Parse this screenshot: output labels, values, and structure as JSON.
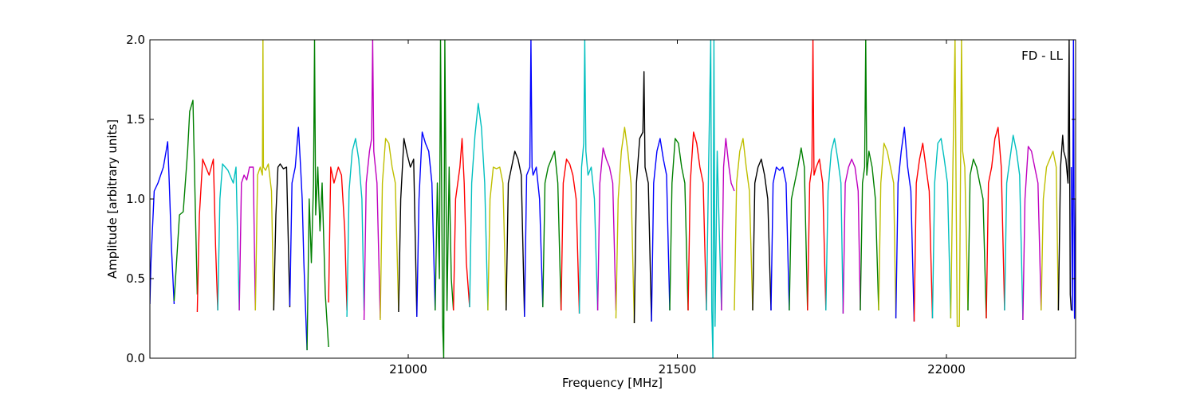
{
  "chart_data": {
    "type": "line",
    "title": "",
    "xlabel": "Frequency [MHz]",
    "ylabel": "Amplitude [arbitrary units]",
    "annotation": "FD - LL",
    "xlim": [
      20520,
      22240
    ],
    "ylim": [
      0,
      2
    ],
    "x_ticks": [
      21000,
      21500,
      22000
    ],
    "y_ticks": [
      0.0,
      0.5,
      1.0,
      1.5,
      2.0
    ],
    "x_tick_labels": [
      "21000",
      "21500",
      "22000"
    ],
    "y_tick_labels": [
      "0.0",
      "0.5",
      "1.0",
      "1.5",
      "2.0"
    ],
    "grid": false,
    "legend": "none",
    "series": [
      {
        "color": "#0000ff",
        "x": [
          20520,
          20522,
          20528,
          20535,
          20545,
          20550,
          20553,
          20556,
          20560,
          20565
        ],
        "y": [
          0.34,
          0.6,
          1.05,
          1.1,
          1.2,
          1.3,
          1.36,
          1.1,
          0.7,
          0.34
        ]
      },
      {
        "color": "#008000",
        "x": [
          20565,
          20575,
          20582,
          20590,
          20594,
          20600,
          20604,
          20608
        ],
        "y": [
          0.36,
          0.9,
          0.92,
          1.3,
          1.55,
          1.62,
          1.0,
          0.4
        ]
      },
      {
        "color": "#ff0000",
        "x": [
          20608,
          20612,
          20618,
          20624,
          20630,
          20638,
          20642,
          20646
        ],
        "y": [
          0.29,
          0.9,
          1.25,
          1.2,
          1.15,
          1.25,
          0.7,
          0.3
        ]
      },
      {
        "color": "#00bfbf",
        "x": [
          20646,
          20650,
          20655,
          20665,
          20675,
          20680,
          20686
        ],
        "y": [
          0.3,
          1.0,
          1.22,
          1.18,
          1.1,
          1.2,
          0.3
        ]
      },
      {
        "color": "#bf00bf",
        "x": [
          20686,
          20690,
          20695,
          20700,
          20705,
          20712,
          20716
        ],
        "y": [
          0.3,
          1.1,
          1.15,
          1.12,
          1.2,
          1.2,
          0.3
        ]
      },
      {
        "color": "#bfbf00",
        "x": [
          20716,
          20720,
          20725,
          20729,
          20730,
          20731,
          20735,
          20740,
          20746,
          20750
        ],
        "y": [
          0.3,
          1.15,
          1.2,
          1.15,
          2.0,
          1.2,
          1.18,
          1.22,
          1.05,
          0.3
        ]
      },
      {
        "color": "#000000",
        "x": [
          20750,
          20754,
          20758,
          20762,
          20768,
          20774,
          20780
        ],
        "y": [
          0.3,
          0.9,
          1.2,
          1.22,
          1.19,
          1.2,
          0.32
        ]
      },
      {
        "color": "#0000ff",
        "x": [
          20780,
          20784,
          20790,
          20796,
          20800,
          20803,
          20806,
          20812
        ],
        "y": [
          0.33,
          1.1,
          1.2,
          1.45,
          1.2,
          1.0,
          0.6,
          0.05
        ]
      },
      {
        "color": "#008000",
        "x": [
          20812,
          20816,
          20820,
          20824,
          20826,
          20828,
          20832,
          20836,
          20840,
          20846,
          20852
        ],
        "y": [
          0.05,
          1.0,
          0.6,
          1.1,
          2.0,
          0.9,
          1.2,
          0.8,
          1.1,
          0.4,
          0.07
        ]
      },
      {
        "color": "#ff0000",
        "x": [
          20852,
          20856,
          20862,
          20870,
          20876,
          20882,
          20886
        ],
        "y": [
          0.35,
          1.2,
          1.1,
          1.2,
          1.15,
          0.8,
          0.3
        ]
      },
      {
        "color": "#00bfbf",
        "x": [
          20886,
          20890,
          20896,
          20902,
          20908,
          20914,
          20918
        ],
        "y": [
          0.26,
          1.05,
          1.3,
          1.38,
          1.25,
          1.0,
          0.3
        ]
      },
      {
        "color": "#bf00bf",
        "x": [
          20918,
          20922,
          20928,
          20932,
          20934,
          20936,
          20942,
          20948
        ],
        "y": [
          0.24,
          1.1,
          1.3,
          1.38,
          2.0,
          1.3,
          1.1,
          0.25
        ]
      },
      {
        "color": "#bfbf00",
        "x": [
          20948,
          20952,
          20958,
          20964,
          20970,
          20976,
          20982
        ],
        "y": [
          0.24,
          1.1,
          1.38,
          1.35,
          1.2,
          1.1,
          0.3
        ]
      },
      {
        "color": "#000000",
        "x": [
          20982,
          20986,
          20992,
          20998,
          21004,
          21010,
          21016
        ],
        "y": [
          0.29,
          1.0,
          1.38,
          1.28,
          1.2,
          1.25,
          0.26
        ]
      },
      {
        "color": "#0000ff",
        "x": [
          21016,
          21020,
          21026,
          21032,
          21038,
          21044,
          21050
        ],
        "y": [
          0.26,
          1.0,
          1.42,
          1.35,
          1.3,
          1.1,
          0.3
        ]
      },
      {
        "color": "#008000",
        "x": [
          21050,
          21054,
          21058,
          21060,
          21064,
          21066,
          21068,
          21072,
          21076,
          21080,
          21084
        ],
        "y": [
          0.3,
          1.1,
          0.5,
          2.0,
          0.2,
          0.0,
          2.0,
          0.3,
          1.2,
          0.5,
          0.3
        ]
      },
      {
        "color": "#ff0000",
        "x": [
          21084,
          21088,
          21092,
          21096,
          21100,
          21104,
          21108,
          21114
        ],
        "y": [
          0.3,
          1.0,
          1.1,
          1.2,
          1.38,
          1.1,
          0.6,
          0.32
        ]
      },
      {
        "color": "#00bfbf",
        "x": [
          21114,
          21118,
          21124,
          21130,
          21136,
          21142,
          21148
        ],
        "y": [
          0.32,
          1.1,
          1.4,
          1.6,
          1.45,
          1.1,
          0.3
        ]
      },
      {
        "color": "#bfbf00",
        "x": [
          21148,
          21152,
          21158,
          21164,
          21170,
          21176,
          21182
        ],
        "y": [
          0.3,
          1.0,
          1.2,
          1.19,
          1.2,
          1.1,
          0.3
        ]
      },
      {
        "color": "#000000",
        "x": [
          21182,
          21186,
          21192,
          21198,
          21204,
          21210,
          21216
        ],
        "y": [
          0.3,
          1.1,
          1.2,
          1.3,
          1.25,
          1.15,
          0.26
        ]
      },
      {
        "color": "#0000ff",
        "x": [
          21216,
          21220,
          21226,
          21228,
          21230,
          21232,
          21238,
          21244,
          21250
        ],
        "y": [
          0.26,
          1.15,
          1.2,
          2.0,
          1.2,
          1.15,
          1.2,
          1.0,
          0.32
        ]
      },
      {
        "color": "#008000",
        "x": [
          21250,
          21254,
          21260,
          21266,
          21272,
          21278,
          21284
        ],
        "y": [
          0.32,
          1.1,
          1.2,
          1.25,
          1.3,
          1.1,
          0.3
        ]
      },
      {
        "color": "#ff0000",
        "x": [
          21284,
          21288,
          21294,
          21300,
          21306,
          21312,
          21318
        ],
        "y": [
          0.3,
          1.1,
          1.25,
          1.22,
          1.15,
          1.0,
          0.28
        ]
      },
      {
        "color": "#00bfbf",
        "x": [
          21318,
          21322,
          21326,
          21328,
          21330,
          21334,
          21340,
          21346,
          21352
        ],
        "y": [
          0.28,
          1.2,
          1.35,
          2.0,
          1.3,
          1.15,
          1.2,
          1.0,
          0.3
        ]
      },
      {
        "color": "#bf00bf",
        "x": [
          21352,
          21356,
          21362,
          21368,
          21374,
          21380,
          21386
        ],
        "y": [
          0.3,
          1.1,
          1.32,
          1.25,
          1.2,
          1.1,
          0.3
        ]
      },
      {
        "color": "#bfbf00",
        "x": [
          21386,
          21390,
          21396,
          21402,
          21408,
          21414,
          21420
        ],
        "y": [
          0.25,
          1.0,
          1.3,
          1.45,
          1.3,
          1.1,
          0.22
        ]
      },
      {
        "color": "#000000",
        "x": [
          21420,
          21424,
          21430,
          21436,
          21438,
          21440,
          21446,
          21452
        ],
        "y": [
          0.22,
          1.1,
          1.38,
          1.42,
          1.8,
          1.2,
          1.1,
          0.23
        ]
      },
      {
        "color": "#0000ff",
        "x": [
          21452,
          21456,
          21462,
          21468,
          21474,
          21480,
          21486
        ],
        "y": [
          0.23,
          1.1,
          1.3,
          1.38,
          1.25,
          1.15,
          0.3
        ]
      },
      {
        "color": "#008000",
        "x": [
          21486,
          21490,
          21496,
          21502,
          21508,
          21514,
          21520
        ],
        "y": [
          0.3,
          1.1,
          1.38,
          1.35,
          1.2,
          1.1,
          0.3
        ]
      },
      {
        "color": "#ff0000",
        "x": [
          21520,
          21524,
          21530,
          21536,
          21542,
          21548,
          21554
        ],
        "y": [
          0.3,
          1.1,
          1.42,
          1.35,
          1.2,
          1.1,
          0.3
        ]
      },
      {
        "color": "#00bfbf",
        "x": [
          21554,
          21558,
          21562,
          21564,
          21566,
          21568,
          21570,
          21574,
          21578,
          21582
        ],
        "y": [
          0.3,
          1.2,
          2.0,
          0.3,
          0.0,
          2.0,
          0.2,
          1.3,
          0.8,
          0.3
        ]
      },
      {
        "color": "#bf00bf",
        "x": [
          21582,
          21586,
          21590,
          21596,
          21600,
          21606
        ],
        "y": [
          0.3,
          1.2,
          1.38,
          1.2,
          1.1,
          1.05
        ]
      },
      {
        "color": "#bfbf00",
        "x": [
          21606,
          21610,
          21616,
          21622,
          21628,
          21634,
          21640
        ],
        "y": [
          0.3,
          1.1,
          1.3,
          1.38,
          1.2,
          1.05,
          0.3
        ]
      },
      {
        "color": "#000000",
        "x": [
          21640,
          21644,
          21650,
          21656,
          21662,
          21668,
          21674
        ],
        "y": [
          0.3,
          1.1,
          1.2,
          1.25,
          1.15,
          1.0,
          0.3
        ]
      },
      {
        "color": "#0000ff",
        "x": [
          21674,
          21678,
          21684,
          21690,
          21696,
          21702,
          21708
        ],
        "y": [
          0.3,
          1.1,
          1.2,
          1.18,
          1.2,
          1.1,
          0.3
        ]
      },
      {
        "color": "#008000",
        "x": [
          21708,
          21712,
          21718,
          21724,
          21730,
          21736,
          21742
        ],
        "y": [
          0.3,
          1.0,
          1.1,
          1.2,
          1.32,
          1.2,
          0.3
        ]
      },
      {
        "color": "#ff0000",
        "x": [
          21742,
          21746,
          21750,
          21752,
          21754,
          21758,
          21764,
          21770,
          21776
        ],
        "y": [
          0.3,
          1.1,
          1.2,
          2.0,
          1.15,
          1.2,
          1.25,
          1.1,
          0.3
        ]
      },
      {
        "color": "#00bfbf",
        "x": [
          21776,
          21780,
          21786,
          21792,
          21798,
          21804,
          21808
        ],
        "y": [
          0.3,
          1.05,
          1.3,
          1.38,
          1.25,
          1.1,
          0.28
        ]
      },
      {
        "color": "#bf00bf",
        "x": [
          21808,
          21812,
          21818,
          21824,
          21830,
          21836,
          21840
        ],
        "y": [
          0.28,
          1.1,
          1.2,
          1.25,
          1.2,
          1.05,
          0.3
        ]
      },
      {
        "color": "#008000",
        "x": [
          21840,
          21844,
          21848,
          21850,
          21852,
          21856,
          21862,
          21868,
          21874
        ],
        "y": [
          0.3,
          1.1,
          1.2,
          2.0,
          1.15,
          1.3,
          1.2,
          1.0,
          0.3
        ]
      },
      {
        "color": "#bfbf00",
        "x": [
          21874,
          21878,
          21884,
          21890,
          21896,
          21902,
          21906
        ],
        "y": [
          0.3,
          1.1,
          1.35,
          1.3,
          1.2,
          1.1,
          0.25
        ]
      },
      {
        "color": "#0000ff",
        "x": [
          21906,
          21910,
          21916,
          21922,
          21928,
          21934,
          21940
        ],
        "y": [
          0.25,
          1.1,
          1.3,
          1.45,
          1.2,
          1.05,
          0.23
        ]
      },
      {
        "color": "#ff0000",
        "x": [
          21940,
          21944,
          21950,
          21956,
          21962,
          21968,
          21974
        ],
        "y": [
          0.23,
          1.1,
          1.25,
          1.35,
          1.2,
          1.05,
          0.25
        ]
      },
      {
        "color": "#00bfbf",
        "x": [
          21974,
          21978,
          21984,
          21990,
          21996,
          22002,
          22008
        ],
        "y": [
          0.25,
          1.1,
          1.35,
          1.38,
          1.25,
          1.1,
          0.25
        ]
      },
      {
        "color": "#bfbf00",
        "x": [
          22008,
          22012,
          22016,
          22018,
          22020,
          22024,
          22028,
          22030,
          22034,
          22040
        ],
        "y": [
          0.25,
          1.2,
          2.0,
          1.0,
          0.2,
          0.2,
          2.0,
          1.3,
          1.2,
          0.3
        ]
      },
      {
        "color": "#008000",
        "x": [
          22040,
          22044,
          22050,
          22056,
          22062,
          22068,
          22074
        ],
        "y": [
          0.3,
          1.15,
          1.25,
          1.2,
          1.1,
          1.0,
          0.25
        ]
      },
      {
        "color": "#ff0000",
        "x": [
          22074,
          22078,
          22084,
          22090,
          22096,
          22102,
          22108
        ],
        "y": [
          0.25,
          1.1,
          1.2,
          1.38,
          1.45,
          1.2,
          0.3
        ]
      },
      {
        "color": "#00bfbf",
        "x": [
          22108,
          22112,
          22118,
          22124,
          22130,
          22136,
          22142
        ],
        "y": [
          0.3,
          1.1,
          1.25,
          1.4,
          1.3,
          1.15,
          0.24
        ]
      },
      {
        "color": "#bf00bf",
        "x": [
          22142,
          22146,
          22152,
          22158,
          22164,
          22170,
          22176
        ],
        "y": [
          0.24,
          1.0,
          1.33,
          1.3,
          1.2,
          1.1,
          0.3
        ]
      },
      {
        "color": "#bfbf00",
        "x": [
          22176,
          22180,
          22186,
          22192,
          22198,
          22204,
          22208
        ],
        "y": [
          0.3,
          1.0,
          1.2,
          1.25,
          1.3,
          1.2,
          0.3
        ]
      },
      {
        "color": "#000000",
        "x": [
          22208,
          22212,
          22216,
          22218,
          22222,
          22226,
          22228,
          22230,
          22232
        ],
        "y": [
          0.3,
          1.2,
          1.4,
          1.3,
          1.25,
          1.1,
          2.0,
          0.4,
          0.3
        ]
      },
      {
        "color": "#0000ff",
        "x": [
          22232,
          22234,
          22236,
          22238,
          22240
        ],
        "y": [
          1.2,
          0.3,
          2.0,
          0.25,
          1.0
        ]
      }
    ]
  }
}
